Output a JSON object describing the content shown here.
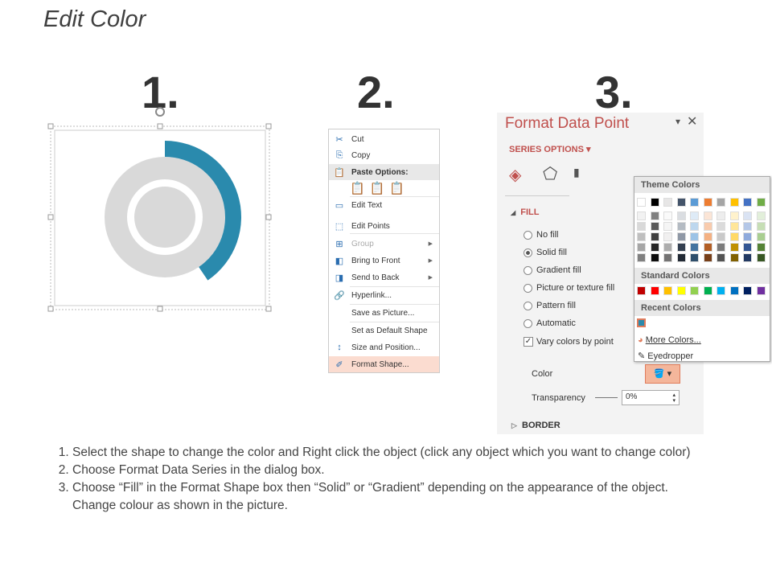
{
  "title": "Edit Color",
  "steps": [
    "1.",
    "2.",
    "3."
  ],
  "donut": {
    "fill_fraction": 0.45,
    "accent": "#2a8aad",
    "ring": "#d9d9d9"
  },
  "menu": {
    "items": [
      {
        "label": "Cut",
        "icon": "scissors-icon"
      },
      {
        "label": "Copy",
        "icon": "copy-icon"
      },
      {
        "label": "Paste Options:",
        "icon": "paste-icon"
      },
      {
        "label": "Edit Text",
        "icon": "edit-text-icon"
      },
      {
        "label": "Edit Points",
        "icon": "edit-points-icon"
      },
      {
        "label": "Group",
        "icon": "group-icon",
        "disabled": true,
        "submenu": true
      },
      {
        "label": "Bring to Front",
        "icon": "bring-front-icon",
        "submenu": true
      },
      {
        "label": "Send to Back",
        "icon": "send-back-icon",
        "submenu": true
      },
      {
        "label": "Hyperlink...",
        "icon": "hyperlink-icon"
      },
      {
        "label": "Save as Picture...",
        "icon": ""
      },
      {
        "label": "Set as Default Shape",
        "icon": ""
      },
      {
        "label": "Size and Position...",
        "icon": "size-position-icon"
      },
      {
        "label": "Format Shape...",
        "icon": "format-shape-icon",
        "highlighted": true
      }
    ]
  },
  "panel": {
    "title": "Format Data Point",
    "series_options": "SERIES OPTIONS",
    "fill": "FILL",
    "options": [
      "No fill",
      "Solid fill",
      "Gradient fill",
      "Picture or texture fill",
      "Pattern fill",
      "Automatic"
    ],
    "selected": 1,
    "vary": "Vary colors by point",
    "color_label": "Color",
    "transparency_label": "Transparency",
    "transparency": "0%",
    "border": "BORDER"
  },
  "palette": {
    "theme_label": "Theme Colors",
    "standard_label": "Standard Colors",
    "recent_label": "Recent Colors",
    "theme": [
      "#ffffff",
      "#000000",
      "#e7e6e6",
      "#44546a",
      "#5b9bd5",
      "#ed7d31",
      "#a5a5a5",
      "#ffc000",
      "#4472c4",
      "#70ad47"
    ],
    "standard": [
      "#c00000",
      "#ff0000",
      "#ffc000",
      "#ffff00",
      "#92d050",
      "#00b050",
      "#00b0f0",
      "#0070c0",
      "#002060",
      "#7030a0"
    ],
    "recent": [
      "#2a8aad"
    ],
    "more": "More Colors...",
    "eyedropper": "Eyedropper"
  },
  "instructions": [
    "Select the shape to change the color and Right click the object (click any object which you want to change color)",
    "Choose Format Data Series in the dialog box.",
    "Choose “Fill” in the Format Shape box then “Solid” or “Gradient” depending on the appearance of the object. Change colour as shown in the picture."
  ]
}
